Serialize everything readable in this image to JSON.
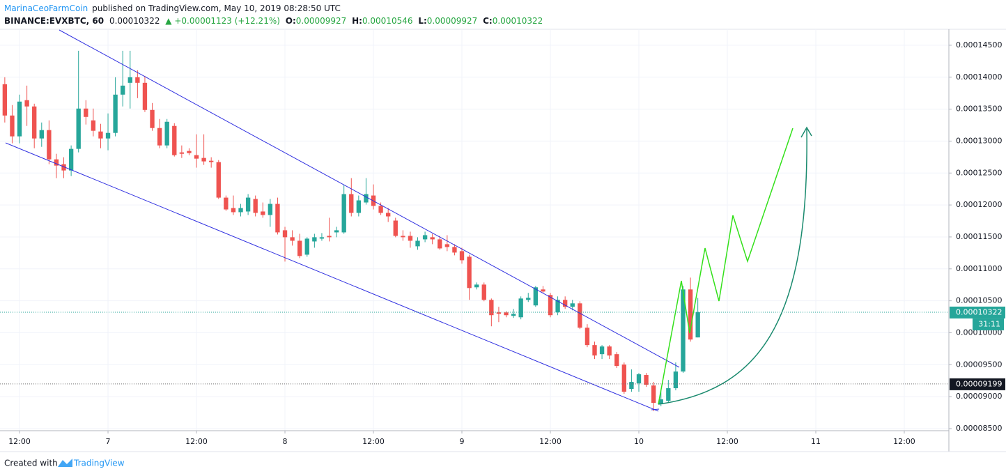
{
  "header": {
    "author": "MarinaCeoFarmCoin",
    "published": "published on TradingView.com, May 10, 2019 08:28:50 UTC",
    "symbol": "BINANCE:EVXBTC, 60",
    "last": "0.00010322",
    "change": "▲ +0.00001123 (+12.21%)",
    "ohlc": [
      {
        "label": "O:",
        "value": "0.00009927"
      },
      {
        "label": "H:",
        "value": "0.00010546"
      },
      {
        "label": "L:",
        "value": "0.00009927"
      },
      {
        "label": "C:",
        "value": "0.00010322"
      }
    ]
  },
  "footer": {
    "created": "Created with",
    "brand": "TradingView"
  },
  "chart_data": {
    "type": "candlestick",
    "categories": [
      null,
      null,
      null,
      null,
      null,
      null,
      null,
      null,
      null,
      null,
      null,
      null,
      null,
      null,
      null,
      null,
      null,
      null,
      null,
      null,
      null,
      null,
      null,
      null,
      null,
      null,
      null,
      null,
      null,
      null,
      null,
      null,
      null,
      null,
      null,
      null,
      null,
      null,
      null,
      null,
      null,
      null,
      null,
      null,
      null,
      null,
      null,
      null,
      null,
      null,
      null,
      null,
      null,
      null,
      null,
      null,
      null,
      null,
      null,
      null,
      null,
      null,
      null,
      null,
      null,
      null,
      null,
      null,
      null,
      null,
      null,
      null,
      null,
      null,
      null,
      null,
      null,
      null,
      null,
      null,
      null,
      null,
      null,
      null,
      null,
      null,
      null,
      null,
      null,
      null,
      null,
      null,
      null,
      null,
      null
    ],
    "open": [
      0.0001389,
      0.000134,
      0.00013074,
      0.0001364,
      0.00013542,
      0.00013041,
      0.00013172,
      0.00012714,
      0.00012638,
      0.0001254,
      0.00012878,
      0.00013509,
      0.00013324,
      0.0001315,
      0.00013041,
      0.00013128,
      0.00013727,
      0.00013912,
      0.00013999,
      0.00013912,
      0.00013487,
      0.00013204,
      0.00012932,
      0.00013237,
      0.00012823,
      0.00012845,
      0.0001278,
      0.00012736,
      0.00012692,
      0.00012671,
      0.00012115,
      0.00011952,
      0.00011887,
      0.00011898,
      0.00012094,
      0.00011898,
      0.00011843,
      0.00012017,
      0.00011604,
      0.00011495,
      0.0001144,
      0.00011222,
      0.00011429,
      0.00011473,
      0.00011516,
      0.00011571,
      0.00011571,
      0.0001217,
      0.00011876,
      0.00012039,
      0.00012148,
      0.00011985,
      0.00011876,
      0.00011756,
      0.00011516,
      0.00011516,
      0.00011353,
      0.00011462,
      0.00011495,
      0.00011462,
      0.00011386,
      0.00011342,
      0.00011277,
      0.0001119,
      0.00010711,
      0.00010754,
      0.00010515,
      0.00010319,
      0.00010319,
      0.00010264,
      0.00010242,
      0.00010515,
      0.00010428,
      0.00010678,
      0.00010591,
      0.00010319,
      0.00010515,
      0.00010406,
      0.0001046,
      0.00010079,
      9.807e-05,
      9.665e-05,
      9.785e-05,
      9.665e-05,
      9.502e-05,
      9.121e-05,
      9.208e-05,
      9.339e-05,
      9.175e-05,
      8.881e-05,
      8.936e-05,
      9.132e-05,
      9.393e-05,
      0.00010678,
      9.927e-05
    ],
    "high": [
      0.00013999,
      0.00013564,
      0.00013727,
      0.00013868,
      0.00013585,
      0.00013291,
      0.00013324,
      0.00012801,
      0.00012747,
      0.00012932,
      0.00014413,
      0.0001364,
      0.00013509,
      0.0001327,
      0.00013433,
      0.00013999,
      0.00014413,
      0.00014413,
      0.00014108,
      0.00014021,
      0.00013596,
      0.00013346,
      0.00013346,
      0.0001328,
      0.00012932,
      0.00012888,
      0.00013106,
      0.00013106,
      0.00012747,
      0.00012703,
      0.00012148,
      0.00012148,
      0.00012017,
      0.0001217,
      0.00012148,
      0.00012039,
      0.00012094,
      0.00012115,
      0.00011658,
      0.00011604,
      0.00011549,
      0.00011495,
      0.00011549,
      0.0001156,
      0.000118,
      0.00011658,
      0.00012311,
      0.0001242,
      0.00012148,
      0.0001242,
      0.00012322,
      0.00012039,
      0.00011952,
      0.000118,
      0.00011604,
      0.00011582,
      0.00011495,
      0.00011582,
      0.00011549,
      0.00011516,
      0.00011527,
      0.00011386,
      0.00011331,
      0.00011222,
      0.00010787,
      0.00010787,
      0.00010536,
      0.00010406,
      0.0001034,
      0.00010373,
      0.00010569,
      0.00010624,
      0.00010732,
      0.00010732,
      0.00010624,
      0.00010569,
      0.00010569,
      0.00010515,
      0.00010493,
      0.00010134,
      9.861e-05,
      9.807e-05,
      9.807e-05,
      9.698e-05,
      9.535e-05,
      9.426e-05,
      9.371e-05,
      9.371e-05,
      9.23e-05,
      9.099e-05,
      9.262e-05,
      9.535e-05,
      0.00010732,
      0.00010863,
      0.00010546
    ],
    "low": [
      0.00013291,
      0.00012965,
      0.00012965,
      0.00013237,
      0.00012888,
      0.0001291,
      0.00012638,
      0.0001242,
      0.0001242,
      0.00012453,
      0.00012823,
      0.00013259,
      0.00013074,
      0.00012888,
      0.00012856,
      0.00013074,
      0.00013542,
      0.00013509,
      0.00013672,
      0.00013455,
      0.00013161,
      0.00012888,
      0.00012888,
      0.00012758,
      0.00012736,
      0.0001278,
      0.00012584,
      0.00012627,
      0.00012584,
      0.00012094,
      0.00011908,
      0.00011843,
      0.00011821,
      0.00011843,
      0.00011821,
      0.000118,
      0.00011658,
      0.00011538,
      0.00011114,
      0.00011364,
      0.00011168,
      0.0001119,
      0.00011331,
      0.0001144,
      0.00011429,
      0.00011495,
      0.00011549,
      0.00011821,
      0.00011821,
      0.00012006,
      0.0001193,
      0.00011843,
      0.00011734,
      0.00011495,
      0.0001144,
      0.00011331,
      0.00011299,
      0.00011418,
      0.00011386,
      0.00011299,
      0.00011277,
      0.00011212,
      0.00011081,
      0.00010515,
      0.00010678,
      0.00010493,
      0.00010101,
      0.00010166,
      0.00010242,
      0.00010232,
      0.0001021,
      0.00010482,
      0.00010406,
      0.00010624,
      0.00010242,
      0.00010275,
      0.00010373,
      0.00010351,
      0.00010057,
      9.774e-05,
      9.589e-05,
      9.589e-05,
      9.589e-05,
      9.448e-05,
      9.045e-05,
      9.077e-05,
      9.077e-05,
      9.154e-05,
      8.772e-05,
      8.849e-05,
      8.903e-05,
      9.099e-05,
      9.371e-05,
      9.861e-05,
      9.927e-05
    ],
    "close": [
      0.000134,
      0.00013074,
      0.00013618,
      0.00013542,
      0.00013041,
      0.00013172,
      0.00012714,
      0.00012616,
      0.0001254,
      0.00012878,
      0.00013509,
      0.00013378,
      0.00013161,
      0.00013041,
      0.00013128,
      0.00013727,
      0.00013868,
      0.00013999,
      0.00013912,
      0.00013487,
      0.00013204,
      0.00012932,
      0.00013302,
      0.0001278,
      0.00012801,
      0.00012812,
      0.00012725,
      0.00012682,
      0.00012671,
      0.00012115,
      0.0001193,
      0.00011887,
      0.00011952,
      0.00012115,
      0.00011876,
      0.00011843,
      0.00012017,
      0.00011571,
      0.00011495,
      0.0001144,
      0.00011201,
      0.00011473,
      0.00011495,
      0.00011495,
      0.00011495,
      0.00011604,
      0.0001217,
      0.00011876,
      0.00012072,
      0.0001217,
      0.00011985,
      0.00011876,
      0.00011821,
      0.00011516,
      0.00011495,
      0.0001144,
      0.0001144,
      0.00011527,
      0.00011462,
      0.0001132,
      0.00011342,
      0.00011255,
      0.00011135,
      0.000107,
      0.00010754,
      0.00010515,
      0.00010275,
      0.00010297,
      0.00010275,
      0.00010297,
      0.00010536,
      0.00010547,
      0.00010711,
      0.00010645,
      0.00010275,
      0.00010515,
      0.00010406,
      0.0001046,
      0.00010079,
      9.807e-05,
      9.644e-05,
      9.785e-05,
      9.644e-05,
      9.48e-05,
      9.077e-05,
      9.23e-05,
      9.35e-05,
      9.186e-05,
      8.903e-05,
      8.958e-05,
      9.132e-05,
      9.393e-05,
      0.00010678,
      9.894e-05,
      0.00010322
    ],
    "colors": {
      "up": "#26a69a",
      "down": "#ef5350"
    },
    "xlim": [
      -0.65,
      128.05
    ],
    "xticks": [
      {
        "value": 2,
        "label": "12:00"
      },
      {
        "value": 14,
        "label": "7"
      },
      {
        "value": 26,
        "label": "12:00"
      },
      {
        "value": 38,
        "label": "8"
      },
      {
        "value": 50,
        "label": "12:00"
      },
      {
        "value": 62,
        "label": "9"
      },
      {
        "value": 74,
        "label": "12:00"
      },
      {
        "value": 86,
        "label": "10"
      },
      {
        "value": 98,
        "label": "12:00"
      },
      {
        "value": 110,
        "label": "11"
      },
      {
        "value": 122,
        "label": "12:00"
      }
    ],
    "ylim": [
      8.467e-05,
      0.0001475
    ],
    "yticks": [
      {
        "value": 8.5e-05,
        "label": "0.00008500"
      },
      {
        "value": 9e-05,
        "label": "0.00009000"
      },
      {
        "value": 9.5e-05,
        "label": "0.00009500"
      },
      {
        "value": 0.0001,
        "label": "0.00010000"
      },
      {
        "value": 0.000105,
        "label": "0.00010500"
      },
      {
        "value": 0.00011,
        "label": "0.00011000"
      },
      {
        "value": 0.000115,
        "label": "0.00011500"
      },
      {
        "value": 0.00012,
        "label": "0.00012000"
      },
      {
        "value": 0.000125,
        "label": "0.00012500"
      },
      {
        "value": 0.00013,
        "label": "0.00013000"
      },
      {
        "value": 0.000135,
        "label": "0.00013500"
      },
      {
        "value": 0.00014,
        "label": "0.00014000"
      },
      {
        "value": 0.000145,
        "label": "0.00014500"
      }
    ],
    "grid": true,
    "last_price": {
      "value": 0.00010322,
      "label": "0.00010322",
      "color": "#26a69a"
    },
    "countdown": "31:11",
    "price_line": {
      "value": 9.199e-05,
      "label": "0.00009199",
      "color": "#131722"
    }
  }
}
